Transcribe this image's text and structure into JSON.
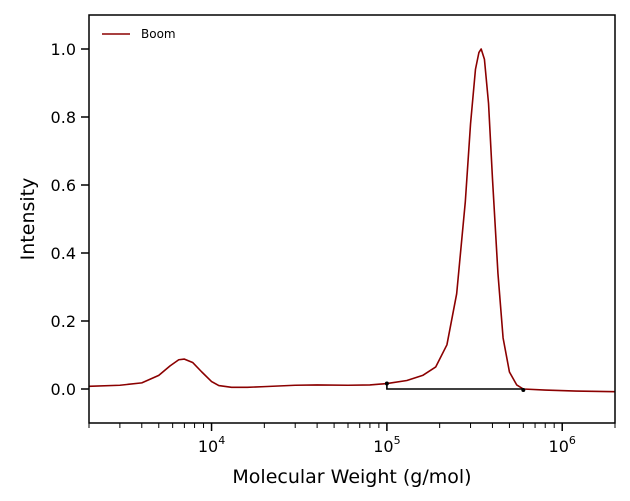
{
  "chart_data": {
    "type": "line",
    "title": "",
    "xlabel": "Molecular Weight (g/mol)",
    "ylabel": "Intensity",
    "xscale": "log",
    "xlim": [
      2000,
      2000000
    ],
    "ylim": [
      -0.1,
      1.1
    ],
    "grid": false,
    "legend_position": "top-left",
    "x_ticks": [
      {
        "value": 10000,
        "base": "10",
        "exp": "4"
      },
      {
        "value": 100000,
        "base": "10",
        "exp": "5"
      },
      {
        "value": 1000000,
        "base": "10",
        "exp": "6"
      }
    ],
    "y_ticks": [
      {
        "value": 0.0,
        "label": "0.0"
      },
      {
        "value": 0.2,
        "label": "0.2"
      },
      {
        "value": 0.4,
        "label": "0.4"
      },
      {
        "value": 0.6,
        "label": "0.6"
      },
      {
        "value": 0.8,
        "label": "0.8"
      },
      {
        "value": 1.0,
        "label": "1.0"
      }
    ],
    "series": [
      {
        "name": "Boom",
        "color": "#8b0000",
        "points": [
          [
            2000,
            0.008
          ],
          [
            3000,
            0.011
          ],
          [
            4000,
            0.018
          ],
          [
            5000,
            0.04
          ],
          [
            5800,
            0.068
          ],
          [
            6500,
            0.086
          ],
          [
            7000,
            0.088
          ],
          [
            7800,
            0.078
          ],
          [
            8800,
            0.05
          ],
          [
            10000,
            0.022
          ],
          [
            11000,
            0.01
          ],
          [
            13000,
            0.005
          ],
          [
            16000,
            0.005
          ],
          [
            20000,
            0.007
          ],
          [
            30000,
            0.011
          ],
          [
            40000,
            0.012
          ],
          [
            60000,
            0.011
          ],
          [
            80000,
            0.012
          ],
          [
            100000,
            0.016
          ],
          [
            130000,
            0.025
          ],
          [
            160000,
            0.04
          ],
          [
            190000,
            0.065
          ],
          [
            220000,
            0.13
          ],
          [
            250000,
            0.28
          ],
          [
            280000,
            0.55
          ],
          [
            300000,
            0.78
          ],
          [
            320000,
            0.94
          ],
          [
            335000,
            0.99
          ],
          [
            345000,
            1.0
          ],
          [
            360000,
            0.97
          ],
          [
            380000,
            0.84
          ],
          [
            400000,
            0.62
          ],
          [
            430000,
            0.34
          ],
          [
            460000,
            0.15
          ],
          [
            500000,
            0.05
          ],
          [
            550000,
            0.012
          ],
          [
            600000,
            0.0
          ],
          [
            800000,
            -0.003
          ],
          [
            1200000,
            -0.006
          ],
          [
            2000000,
            -0.008
          ]
        ]
      }
    ],
    "annotations": [
      {
        "type": "baseline",
        "color": "#000000",
        "x": [
          100000,
          100000,
          600000,
          600000
        ],
        "y": [
          0.016,
          0.0,
          0.0,
          -0.003
        ]
      }
    ]
  }
}
